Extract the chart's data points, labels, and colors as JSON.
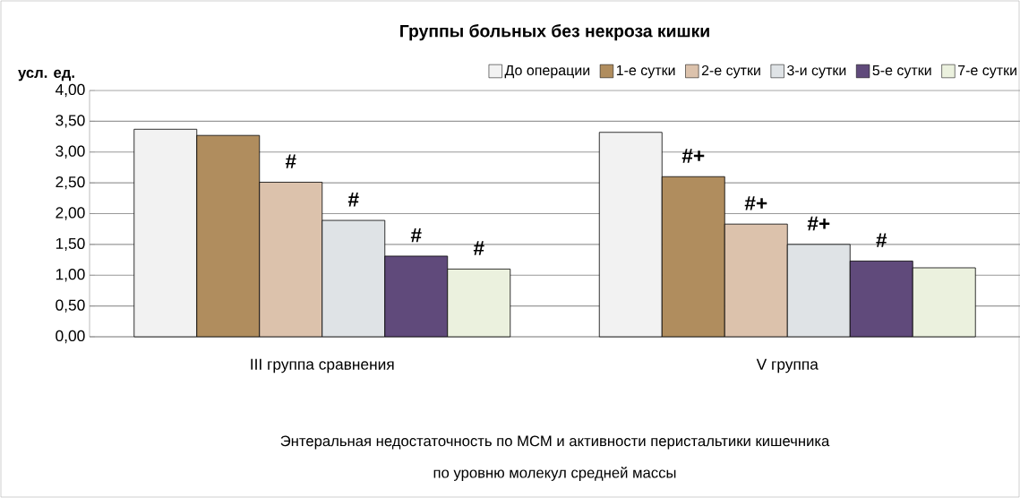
{
  "chart_data": {
    "type": "bar",
    "title": "Группы больных без некроза кишки",
    "ylabel": "усл. ед.",
    "xlabel": "Энтеральная недостаточность по МСМ и активности перистальтики кишечника",
    "categories": [
      "III группа сравнения",
      "V группа"
    ],
    "series": [
      {
        "name": "До операции",
        "color": "#f2f2f2",
        "values": [
          3.37,
          3.32
        ]
      },
      {
        "name": "1-е сутки",
        "color": "#b08d5e",
        "values": [
          3.27,
          2.6
        ],
        "value_labels": [
          null,
          "#+"
        ]
      },
      {
        "name": "2-е сутки",
        "color": "#dcc2ac",
        "values": [
          2.51,
          1.83
        ],
        "value_labels": [
          "#",
          "#+"
        ]
      },
      {
        "name": "3-и сутки",
        "color": "#dfe3e6",
        "values": [
          1.89,
          1.5
        ],
        "value_labels": [
          "#",
          "#+"
        ]
      },
      {
        "name": "5-е сутки",
        "color": "#604a7b",
        "values": [
          1.31,
          1.23
        ],
        "value_labels": [
          "#",
          "#"
        ]
      },
      {
        "name": "7-е сутки",
        "color": "#ebf1de",
        "values": [
          1.1,
          1.12
        ],
        "value_labels": [
          "#",
          null
        ]
      }
    ],
    "ylim": [
      0,
      4
    ],
    "yticks": [
      {
        "value": 0,
        "label": "0,00"
      },
      {
        "value": 0.5,
        "label": "0,50"
      },
      {
        "value": 1,
        "label": "1,00"
      },
      {
        "value": 1.5,
        "label": "1,50"
      },
      {
        "value": 2,
        "label": "2,00"
      },
      {
        "value": 2.5,
        "label": "2,50"
      },
      {
        "value": 3,
        "label": "3,00"
      },
      {
        "value": 3.5,
        "label": "3,50"
      },
      {
        "value": 4,
        "label": "4,00"
      }
    ],
    "grid": "y",
    "legend": "top right",
    "annotations": [
      "по уровню молекул средней массы"
    ]
  }
}
